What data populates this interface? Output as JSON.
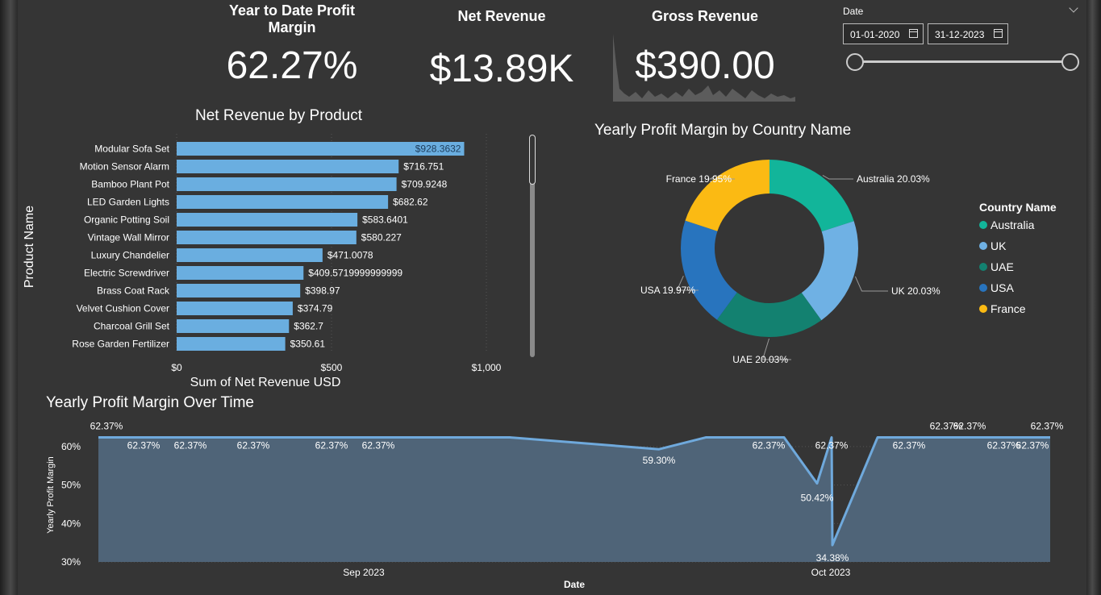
{
  "kpis": {
    "ytd_title_line1": "Year to Date Profit",
    "ytd_title_line2": "Margin",
    "ytd_value": "62.27%",
    "net_title": "Net Revenue",
    "net_value": "$13.89K",
    "gross_title": "Gross Revenue",
    "gross_value": "$390.00"
  },
  "date_filter": {
    "label": "Date",
    "start": "01-01-2020",
    "end": "31-12-2023",
    "range_fraction": [
      0,
      1
    ]
  },
  "colors": {
    "bar": "#6aaee0",
    "area_fill": "#4f6478",
    "area_line": "#6fa9dc",
    "australia": "#12b59a",
    "uk": "#6fb1e4",
    "uae": "#138170",
    "usa": "#2874be",
    "france": "#fbba13"
  },
  "chart_data": [
    {
      "type": "bar",
      "orientation": "horizontal",
      "title": "Net Revenue by Product",
      "xlabel": "Sum of Net Revenue USD",
      "ylabel": "Product Name",
      "xlim": [
        0,
        1000
      ],
      "xticks": [
        "$0",
        "$500",
        "$1,000"
      ],
      "xtick_values": [
        0,
        500,
        1000
      ],
      "categories": [
        "Modular Sofa Set",
        "Motion Sensor Alarm",
        "Bamboo Plant Pot",
        "LED Garden Lights",
        "Organic Potting Soil",
        "Vintage Wall Mirror",
        "Luxury Chandelier",
        "Electric Screwdriver",
        "Brass Coat Rack",
        "Velvet Cushion Cover",
        "Charcoal Grill Set",
        "Rose Garden Fertilizer"
      ],
      "values": [
        928.3632,
        716.751,
        709.9248,
        682.62,
        583.6401,
        580.227,
        471.0078,
        409.5719999999999,
        398.97,
        374.79,
        362.7,
        350.61
      ],
      "labels": [
        "$928.3632",
        "$716.751",
        "$709.9248",
        "$682.62",
        "$583.6401",
        "$580.227",
        "$471.0078",
        "$409.5719999999999",
        "$398.97",
        "$374.79",
        "$362.7",
        "$350.61"
      ]
    },
    {
      "type": "pie",
      "donut": true,
      "title": "Yearly Profit Margin by Country Name",
      "legend_title": "Country Name",
      "legend_position": "right",
      "slices": [
        {
          "name": "Australia",
          "value": 20.03,
          "label": "Australia 20.03%",
          "color_key": "australia"
        },
        {
          "name": "UK",
          "value": 20.03,
          "label": "UK 20.03%",
          "color_key": "uk"
        },
        {
          "name": "UAE",
          "value": 20.03,
          "label": "UAE 20.03%",
          "color_key": "uae"
        },
        {
          "name": "USA",
          "value": 19.97,
          "label": "USA 19.97%",
          "color_key": "usa"
        },
        {
          "name": "France",
          "value": 19.95,
          "label": "France 19.95%",
          "color_key": "france"
        }
      ]
    },
    {
      "type": "area",
      "title": "Yearly Profit Margin Over Time",
      "xlabel": "Date",
      "ylabel": "Yearly Profit Margin",
      "ylim": [
        30,
        65
      ],
      "yticks": [
        "30%",
        "40%",
        "50%",
        "60%"
      ],
      "ytick_values": [
        30,
        40,
        50,
        60
      ],
      "xticks": [
        "Sep 2023",
        "Oct 2023"
      ],
      "xtick_index": [
        6.5,
        16.5
      ],
      "x_index": [
        0,
        1,
        2,
        3,
        4,
        5,
        6,
        7,
        8,
        9,
        10,
        11,
        12,
        13,
        14,
        15,
        16,
        17,
        18,
        19,
        20,
        21
      ],
      "values": [
        62.37,
        62.37,
        62.37,
        62.37,
        62.37,
        62.37,
        62.37,
        62.37,
        59.3,
        62.37,
        62.37,
        62.37,
        50.42,
        62.37,
        34.38,
        62.37,
        62.37,
        62.37,
        62.37,
        62.37,
        62.37,
        62.37
      ],
      "labels": [
        "62.37%",
        "62.37%",
        "62.37%",
        "62.37%",
        "62.37%",
        "62.37%",
        "",
        "",
        "59.30%",
        "",
        "62.37%",
        "",
        "50.42%",
        "62.37%",
        "34.38%",
        "",
        "62.37%",
        "62.37%",
        "62.37%",
        "62.37%",
        "62.37%",
        "62.37%"
      ]
    }
  ]
}
